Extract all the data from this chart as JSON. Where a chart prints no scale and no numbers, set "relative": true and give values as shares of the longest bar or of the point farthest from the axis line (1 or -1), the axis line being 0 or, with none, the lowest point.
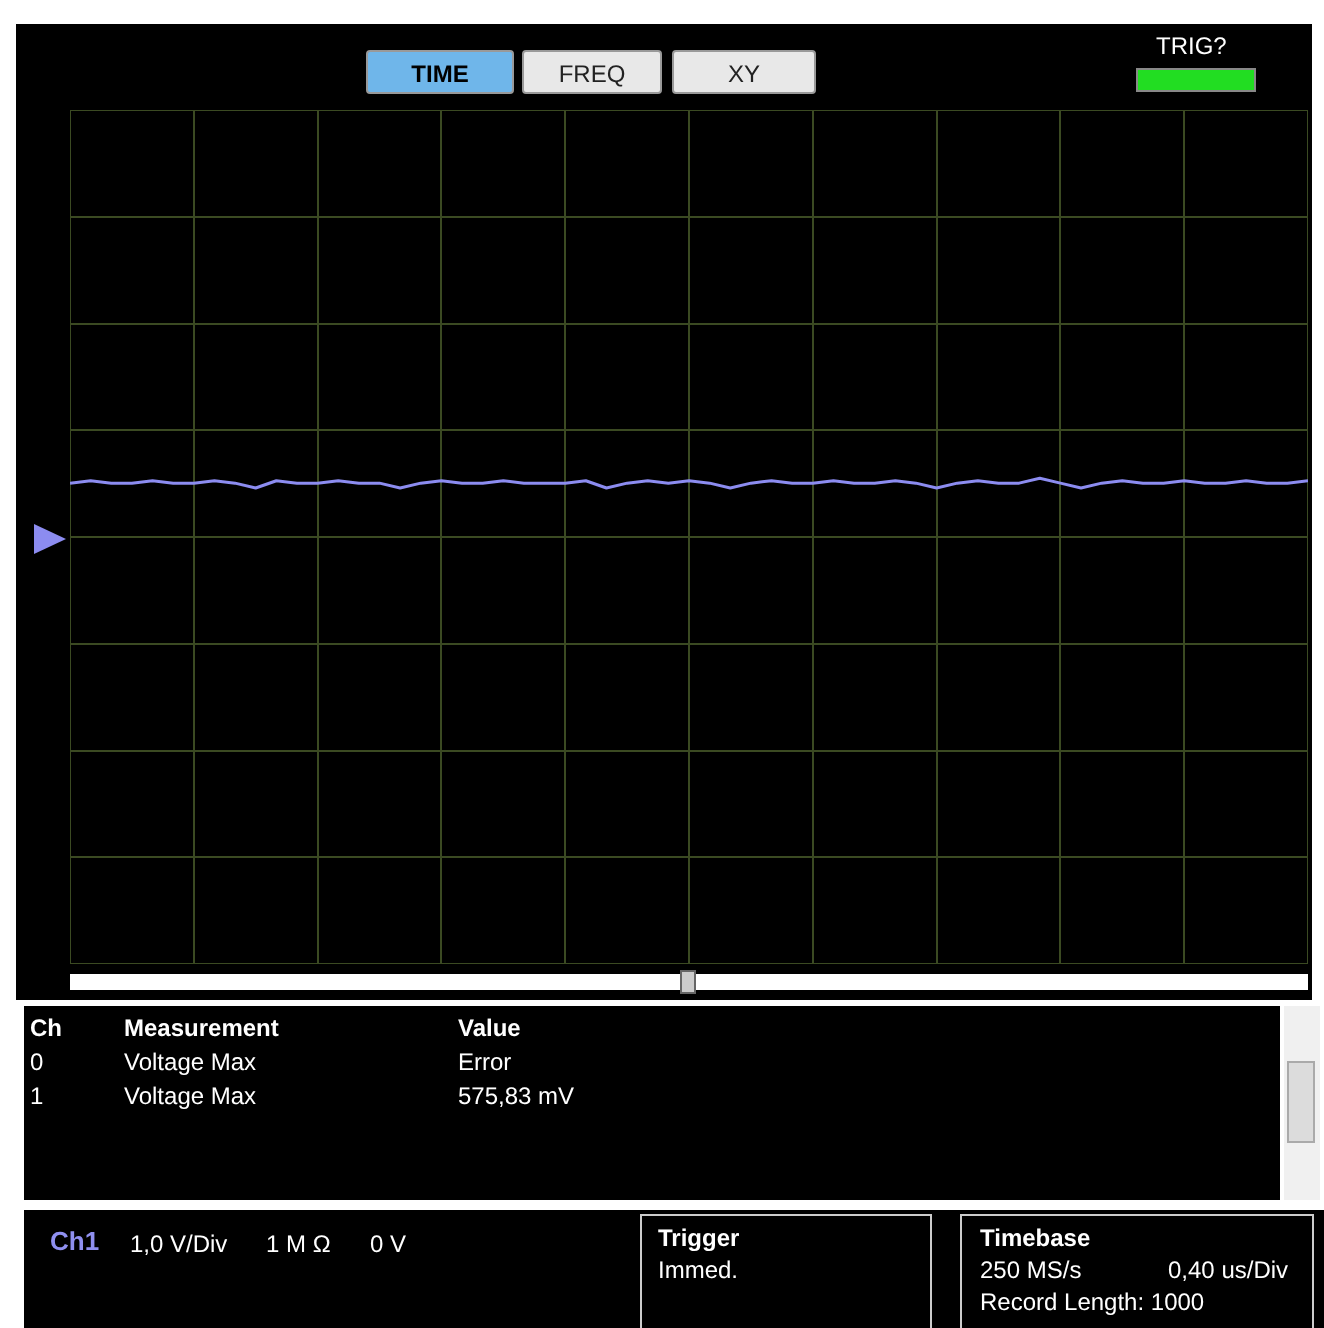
{
  "chart_data": {
    "type": "line",
    "relative": true,
    "grid": true,
    "marker": "none",
    "line_style": "solid",
    "categories": [
      null,
      null,
      null,
      null,
      null,
      null,
      null,
      null,
      null,
      null,
      null,
      null,
      null,
      null,
      null,
      null,
      null,
      null,
      null,
      null,
      null,
      null,
      null,
      null,
      null,
      null,
      null,
      null,
      null,
      null,
      null,
      null,
      null,
      null,
      null,
      null,
      null,
      null,
      null,
      null,
      null,
      null,
      null,
      null,
      null,
      null,
      null,
      null,
      null,
      null,
      null,
      null,
      null,
      null,
      null,
      null,
      null,
      null,
      null,
      null,
      null
    ],
    "series": [
      {
        "color": "#8c8cf0",
        "values": [
          0.99,
          0.995,
          0.99,
          0.99,
          0.995,
          0.99,
          0.99,
          0.995,
          0.99,
          0.98,
          0.995,
          0.99,
          0.99,
          0.995,
          0.99,
          0.99,
          0.98,
          0.99,
          0.995,
          0.99,
          0.99,
          0.995,
          0.99,
          0.99,
          0.99,
          0.995,
          0.98,
          0.99,
          0.995,
          0.99,
          0.995,
          0.99,
          0.98,
          0.99,
          0.995,
          0.99,
          0.99,
          0.995,
          0.99,
          0.99,
          0.995,
          0.99,
          0.98,
          0.99,
          0.995,
          0.99,
          0.99,
          1,
          0.99,
          0.98,
          0.99,
          0.995,
          0.99,
          0.99,
          0.995,
          0.99,
          0.99,
          0.995,
          0.99,
          0.99,
          0.995
        ]
      }
    ],
    "annotations": [
      "TIME",
      "FREQ",
      "XY",
      "TRIG?",
      "Ch",
      "Measurement",
      "Value",
      "0",
      "Voltage Max",
      "Error",
      "1",
      "Voltage Max",
      "575,83 mV",
      "Ch1",
      "1,0 V/Div",
      "1 M Ω",
      "0 V",
      "Trigger",
      "Immed.",
      "Timebase",
      "250 MS/s",
      "0,40 us/Div",
      "Record Length: 1000"
    ]
  }
}
